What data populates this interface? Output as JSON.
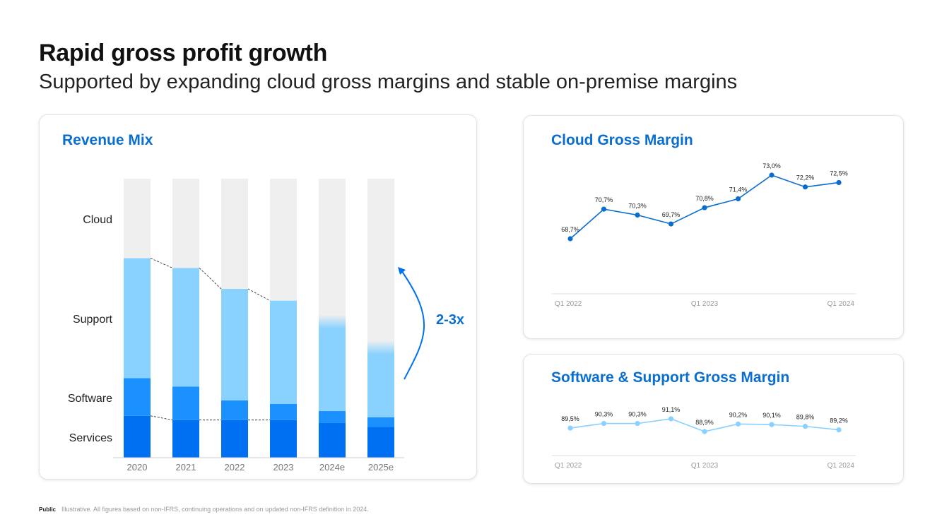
{
  "header": {
    "title": "Rapid gross profit growth",
    "subtitle": "Supported by expanding cloud gross margins and stable on-premise margins"
  },
  "footer": {
    "classification": "Public",
    "note": "Illustrative. All figures based on non-IFRS, continuing operations and on updated non-IFRS definition in 2024."
  },
  "colors": {
    "accent": "#0a6ed1",
    "cloud": "#efefef",
    "support": "#89d1ff",
    "software": "#1b90ff",
    "services": "#0070f2",
    "soft_line": "#89d1ff"
  },
  "chart_data": [
    {
      "type": "bar",
      "stacked": true,
      "illustrative": true,
      "title": "Revenue Mix",
      "categories": [
        "2020",
        "2021",
        "2022",
        "2023",
        "2024e",
        "2025e"
      ],
      "series": [
        {
          "name": "Services",
          "values": [
            15,
            13.5,
            13.5,
            13.5,
            12.5,
            11
          ]
        },
        {
          "name": "Software",
          "values": [
            13.5,
            12,
            7,
            5.8,
            4.2,
            3.5
          ]
        },
        {
          "name": "Support",
          "values": [
            43,
            42.5,
            40,
            37,
            30,
            23
          ]
        },
        {
          "name": "Cloud",
          "values": [
            28.5,
            32,
            39.5,
            43.7,
            53.3,
            62.5
          ]
        }
      ],
      "ylim": [
        0,
        100
      ],
      "annotation": "2-3x"
    },
    {
      "type": "line",
      "title": "Cloud Gross Margin",
      "x": [
        "Q1 2022",
        "Q2 2022",
        "Q3 2022",
        "Q4 2022",
        "Q1 2023",
        "Q2 2023",
        "Q3 2023",
        "Q4 2023",
        "Q1 2024"
      ],
      "values": [
        68.7,
        70.7,
        70.3,
        69.7,
        70.8,
        71.4,
        73.0,
        72.2,
        72.5
      ],
      "labels": [
        "68,7%",
        "70,7%",
        "70,3%",
        "69,7%",
        "70,8%",
        "71,4%",
        "73,0%",
        "72,2%",
        "72,5%"
      ],
      "x_ticks": [
        "Q1 2022",
        "Q1 2023",
        "Q1 2024"
      ],
      "ylim": [
        66,
        74
      ]
    },
    {
      "type": "line",
      "title": "Software & Support Gross Margin",
      "x": [
        "Q1 2022",
        "Q2 2022",
        "Q3 2022",
        "Q4 2022",
        "Q1 2023",
        "Q2 2023",
        "Q3 2023",
        "Q4 2023",
        "Q1 2024"
      ],
      "values": [
        89.5,
        90.3,
        90.3,
        91.1,
        88.9,
        90.2,
        90.1,
        89.8,
        89.2
      ],
      "labels": [
        "89,5%",
        "90,3%",
        "90,3%",
        "91,1%",
        "88,9%",
        "90,2%",
        "90,1%",
        "89,8%",
        "89,2%"
      ],
      "x_ticks": [
        "Q1 2022",
        "Q1 2023",
        "Q1 2024"
      ],
      "ylim": [
        80,
        100
      ]
    }
  ]
}
